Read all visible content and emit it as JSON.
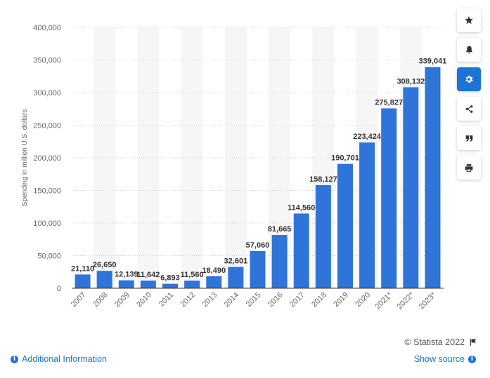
{
  "chart_data": {
    "type": "bar",
    "categories": [
      "2007",
      "2008",
      "2009",
      "2010",
      "2011",
      "2012",
      "2013",
      "2014",
      "2015",
      "2016",
      "2017",
      "2018",
      "2019",
      "2020",
      "2021*",
      "2022*",
      "2023*"
    ],
    "values": [
      21110,
      26650,
      12139,
      11642,
      6893,
      11560,
      18490,
      32601,
      57060,
      81665,
      114560,
      158127,
      190701,
      223424,
      275827,
      308132,
      339041
    ],
    "value_labels": [
      "21,110",
      "26,650",
      "12,139",
      "11,642",
      "6,893",
      "11,560",
      "18,490",
      "32,601",
      "57,060",
      "81,665",
      "114,560",
      "158,127",
      "190,701",
      "223,424",
      "275,827",
      "308,132",
      "339,041"
    ],
    "ylabel": "Spending in million U.S. dollars",
    "xlabel": "",
    "ylim": [
      0,
      400000
    ],
    "yticks": [
      0,
      50000,
      100000,
      150000,
      200000,
      250000,
      300000,
      350000,
      400000
    ],
    "ytick_labels": [
      "0",
      "50,000",
      "100,000",
      "150,000",
      "200,000",
      "250,000",
      "300,000",
      "350,000",
      "400,000"
    ],
    "grid": true,
    "bar_color": "#2f74d9"
  },
  "toolbar": {
    "items": [
      {
        "icon": "star-icon"
      },
      {
        "icon": "bell-icon"
      },
      {
        "icon": "gear-icon",
        "active": true
      },
      {
        "icon": "share-icon"
      },
      {
        "icon": "quote-icon"
      },
      {
        "icon": "print-icon"
      }
    ]
  },
  "footer": {
    "copyright": "© Statista 2022",
    "additional_info": "Additional Information",
    "show_source": "Show source"
  }
}
